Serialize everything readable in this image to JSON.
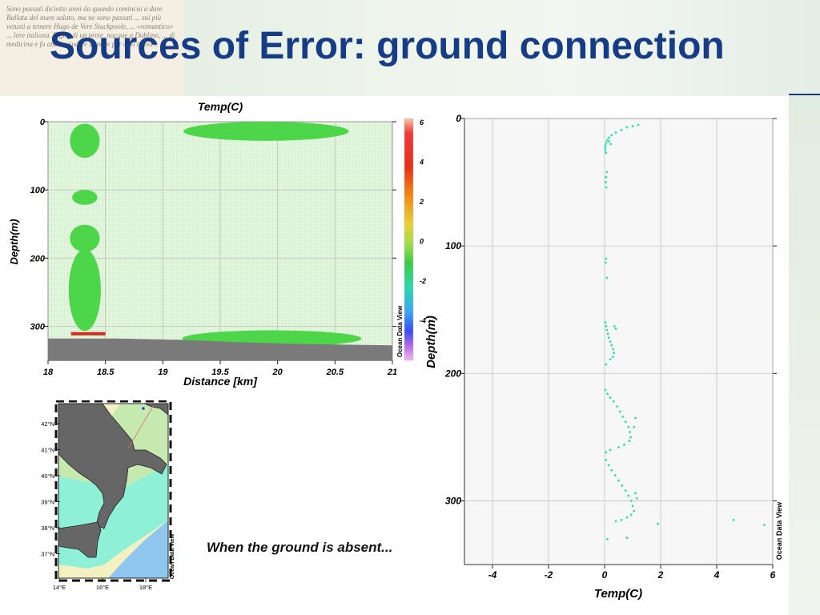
{
  "slide": {
    "title": "Sources of Error: ground connection",
    "caption": "When the ground is absent..."
  },
  "colors": {
    "title": "#173c86",
    "section_fill": "#d9f2d4",
    "anomaly_green": "#4ed64a",
    "ground": "#7a7a7a",
    "points": "#2fe0a8",
    "map_land": "#666666",
    "map_shelf": "#f3f0c2",
    "map_slope": "#c6e9b0",
    "map_mid": "#8ff0d8",
    "map_deep": "#8ec6ee"
  },
  "chart_data": [
    {
      "type": "heatmap",
      "title": "Temp(C)",
      "xlabel": "Distance [km]",
      "ylabel": "Depth(m)",
      "xlim": [
        18,
        21
      ],
      "ylim": [
        0,
        350
      ],
      "y_inverted": true,
      "xticks": [
        "18",
        "18.5",
        "19",
        "19.5",
        "20",
        "20.5",
        "21"
      ],
      "yticks": [
        "0",
        "100",
        "200",
        "300"
      ],
      "colorbar": {
        "ticks": [
          "6",
          "4",
          "2",
          "0",
          "-2",
          "-4"
        ],
        "range": [
          -6,
          6
        ]
      },
      "watermark": "Ocean Data View",
      "anomalies": [
        {
          "x_center": 18.32,
          "depth_center": 28,
          "x_halfwidth": 0.13,
          "depth_halfwidth": 25,
          "value": 0.4
        },
        {
          "x_center": 18.32,
          "depth_center": 111,
          "x_halfwidth": 0.11,
          "depth_halfwidth": 11,
          "value": 0.4
        },
        {
          "x_center": 18.32,
          "depth_center": 171,
          "x_halfwidth": 0.13,
          "depth_halfwidth": 20,
          "value": 0.4
        },
        {
          "x_center": 18.32,
          "depth_center": 247,
          "x_halfwidth": 0.14,
          "depth_halfwidth": 60,
          "value": 0.4
        },
        {
          "x_center": 19.9,
          "depth_center": 14,
          "x_halfwidth": 0.72,
          "depth_halfwidth": 14,
          "value": 0.6
        },
        {
          "x_center": 19.95,
          "depth_center": 318,
          "x_halfwidth": 0.78,
          "depth_halfwidth": 12,
          "value": 0.6
        }
      ],
      "hot_layer": {
        "x_range": [
          18.2,
          18.5
        ],
        "depth": 311
      },
      "bottom_profile": [
        [
          18,
          318
        ],
        [
          18.6,
          318
        ],
        [
          19.2,
          320
        ],
        [
          19.6,
          323
        ],
        [
          20.2,
          326
        ],
        [
          21,
          328
        ]
      ]
    },
    {
      "type": "scatter",
      "xlabel": "Temp(C)",
      "ylabel": "Depth(m)",
      "xlim": [
        -5,
        6
      ],
      "ylim": [
        0,
        350
      ],
      "y_inverted": true,
      "xticks": [
        "-4",
        "-2",
        "0",
        "2",
        "4",
        "6"
      ],
      "yticks": [
        "0",
        "100",
        "200",
        "300"
      ],
      "watermark": "Ocean Data View",
      "points": [
        [
          1.2,
          5
        ],
        [
          1.0,
          6
        ],
        [
          0.8,
          7
        ],
        [
          0.6,
          9
        ],
        [
          0.4,
          11
        ],
        [
          0.25,
          13
        ],
        [
          0.15,
          15
        ],
        [
          0.1,
          17
        ],
        [
          0.06,
          19
        ],
        [
          0.03,
          21
        ],
        [
          0.02,
          23
        ],
        [
          0.03,
          25
        ],
        [
          0.05,
          27
        ],
        [
          0.15,
          18
        ],
        [
          0.22,
          20
        ],
        [
          0.08,
          42
        ],
        [
          0.05,
          46
        ],
        [
          0.04,
          50
        ],
        [
          0.06,
          54
        ],
        [
          0.05,
          110
        ],
        [
          0.03,
          113
        ],
        [
          0.08,
          125
        ],
        [
          0.02,
          160
        ],
        [
          0.05,
          163
        ],
        [
          0.08,
          166
        ],
        [
          0.12,
          169
        ],
        [
          0.15,
          172
        ],
        [
          0.2,
          175
        ],
        [
          0.25,
          178
        ],
        [
          0.3,
          181
        ],
        [
          0.33,
          184
        ],
        [
          0.3,
          187
        ],
        [
          0.2,
          189
        ],
        [
          0.05,
          193
        ],
        [
          0.35,
          163
        ],
        [
          0.4,
          165
        ],
        [
          0.02,
          213
        ],
        [
          0.1,
          216
        ],
        [
          0.2,
          219
        ],
        [
          0.32,
          222
        ],
        [
          0.45,
          226
        ],
        [
          0.55,
          230
        ],
        [
          0.65,
          234
        ],
        [
          0.75,
          238
        ],
        [
          0.85,
          242
        ],
        [
          0.9,
          246
        ],
        [
          0.93,
          250
        ],
        [
          0.88,
          253
        ],
        [
          0.7,
          256
        ],
        [
          0.5,
          258
        ],
        [
          0.2,
          260
        ],
        [
          0.05,
          262
        ],
        [
          1.1,
          235
        ],
        [
          1.05,
          242
        ],
        [
          0.05,
          268
        ],
        [
          0.15,
          272
        ],
        [
          0.25,
          276
        ],
        [
          0.38,
          280
        ],
        [
          0.5,
          284
        ],
        [
          0.62,
          288
        ],
        [
          0.75,
          292
        ],
        [
          0.85,
          296
        ],
        [
          0.95,
          300
        ],
        [
          1.0,
          304
        ],
        [
          1.05,
          308
        ],
        [
          0.95,
          311
        ],
        [
          0.8,
          313
        ],
        [
          0.6,
          315
        ],
        [
          0.4,
          316
        ],
        [
          1.1,
          294
        ],
        [
          1.15,
          298
        ],
        [
          1.9,
          318
        ],
        [
          4.6,
          315
        ],
        [
          5.7,
          319
        ],
        [
          0.1,
          330
        ],
        [
          0.8,
          329
        ]
      ]
    },
    {
      "type": "map",
      "lat_ticks": [
        "42°N",
        "41°N",
        "40°N",
        "39°N",
        "38°N",
        "37°N"
      ],
      "lon_ticks": [
        "14°E",
        "16°E",
        "18°E"
      ],
      "watermark": "Ocean Data View"
    }
  ],
  "background_text": "Sono passati diciotto anni da quando comincia a dare Ballata del mare salato, ma ne sono passati ... sui più vetusti a temere Hugo de Vere Stackpoole, ... «romantico» ... lore italiana. Figlio di un prete, nacque a Dublino, ... di medicina e fu anche giudice di pace per casi minori."
}
